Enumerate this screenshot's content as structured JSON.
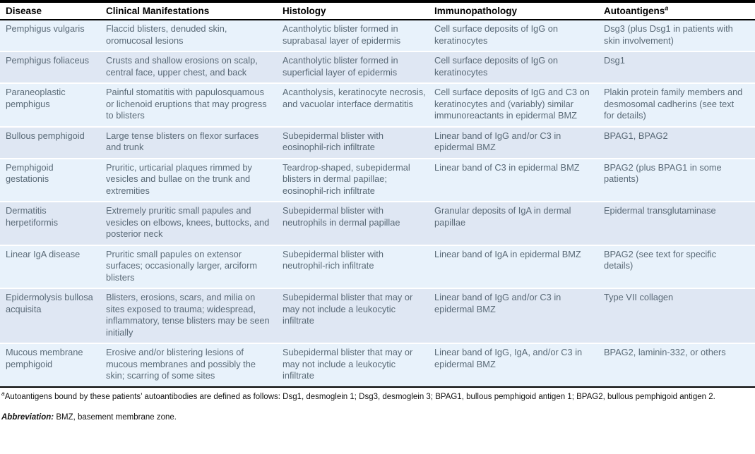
{
  "colors": {
    "row_odd_bg": "#e8f2fb",
    "row_even_bg": "#dfe7f3",
    "cell_text": "#5a6a77",
    "header_text": "#000000",
    "rule": "#000000"
  },
  "table": {
    "columns": [
      {
        "key": "disease",
        "label": "Disease"
      },
      {
        "key": "clinical_manifestations",
        "label": "Clinical Manifestations"
      },
      {
        "key": "histology",
        "label": "Histology"
      },
      {
        "key": "immunopathology",
        "label": "Immunopathology"
      },
      {
        "key": "autoantigens",
        "label": "Autoantigens",
        "superscript": "a"
      }
    ],
    "rows": [
      {
        "disease": "Pemphigus vulgaris",
        "clinical_manifestations": "Flaccid blisters, denuded skin, oromucosal lesions",
        "histology": "Acantholytic blister formed in suprabasal layer of epidermis",
        "immunopathology": "Cell surface deposits of IgG on keratinocytes",
        "autoantigens": "Dsg3 (plus Dsg1 in patients with skin involvement)"
      },
      {
        "disease": "Pemphigus foliaceus",
        "clinical_manifestations": "Crusts and shallow erosions on scalp, central face, upper chest, and back",
        "histology": "Acantholytic blister formed in superficial layer of epidermis",
        "immunopathology": "Cell surface deposits of IgG on keratinocytes",
        "autoantigens": "Dsg1"
      },
      {
        "disease": "Paraneoplastic pemphigus",
        "clinical_manifestations": "Painful stomatitis with papulosquamous or lichenoid eruptions that may progress to blisters",
        "histology": "Acantholysis, keratinocyte necrosis, and vacuolar interface dermatitis",
        "immunopathology": "Cell surface deposits of IgG and C3 on keratinocytes and (variably) similar immunoreactants in epidermal BMZ",
        "autoantigens": "Plakin protein family members and desmosomal cadherins (see text for details)"
      },
      {
        "disease": "Bullous pemphigoid",
        "clinical_manifestations": "Large tense blisters on flexor surfaces and trunk",
        "histology": "Subepidermal blister with eosinophil-rich infiltrate",
        "immunopathology": "Linear band of IgG and/or C3 in epidermal BMZ",
        "autoantigens": "BPAG1, BPAG2"
      },
      {
        "disease": "Pemphigoid gestationis",
        "clinical_manifestations": "Pruritic, urticarial plaques rimmed by vesicles and bullae on the trunk and extremities",
        "histology": "Teardrop-shaped, subepidermal blisters in dermal papillae; eosinophil-rich infiltrate",
        "immunopathology": "Linear band of C3 in epidermal BMZ",
        "autoantigens": "BPAG2 (plus BPAG1 in some patients)"
      },
      {
        "disease": "Dermatitis herpetiformis",
        "clinical_manifestations": "Extremely pruritic small papules and vesicles on elbows, knees, buttocks, and posterior neck",
        "histology": "Subepidermal blister with neutrophils in dermal papillae",
        "immunopathology": "Granular deposits of IgA in dermal papillae",
        "autoantigens": "Epidermal transglutaminase"
      },
      {
        "disease": "Linear IgA disease",
        "clinical_manifestations": "Pruritic small papules on extensor surfaces; occasionally larger, arciform blisters",
        "histology": "Subepidermal blister with neutrophil-rich infiltrate",
        "immunopathology": "Linear band of IgA in epidermal BMZ",
        "autoantigens": "BPAG2 (see text for specific details)"
      },
      {
        "disease": "Epidermolysis bullosa acquisita",
        "clinical_manifestations": "Blisters, erosions, scars, and milia on sites exposed to trauma; widespread, inflammatory, tense blisters may be seen initially",
        "histology": "Subepidermal blister that may or may not include a leukocytic infiltrate",
        "immunopathology": "Linear band of IgG and/or C3 in epidermal BMZ",
        "autoantigens": "Type VII collagen"
      },
      {
        "disease": "Mucous membrane pemphigoid",
        "clinical_manifestations": "Erosive and/or blistering lesions of mucous membranes and possibly the skin; scarring of some sites",
        "histology": "Subepidermal blister that may or may not include a leukocytic infiltrate",
        "immunopathology": "Linear band of IgG, IgA, and/or C3 in epidermal BMZ",
        "autoantigens": "BPAG2, laminin-332, or others"
      }
    ]
  },
  "footnotes": {
    "autoantigens_marker": "a",
    "autoantigens_note": "Autoantigens bound by these patients’ autoantibodies are defined as follows: Dsg1, desmoglein 1; Dsg3, desmoglein 3; BPAG1, bullous pemphigoid antigen 1; BPAG2, bullous pemphigoid antigen 2.",
    "abbreviation_label": "Abbreviation:",
    "abbreviation_text": " BMZ, basement membrane zone."
  }
}
